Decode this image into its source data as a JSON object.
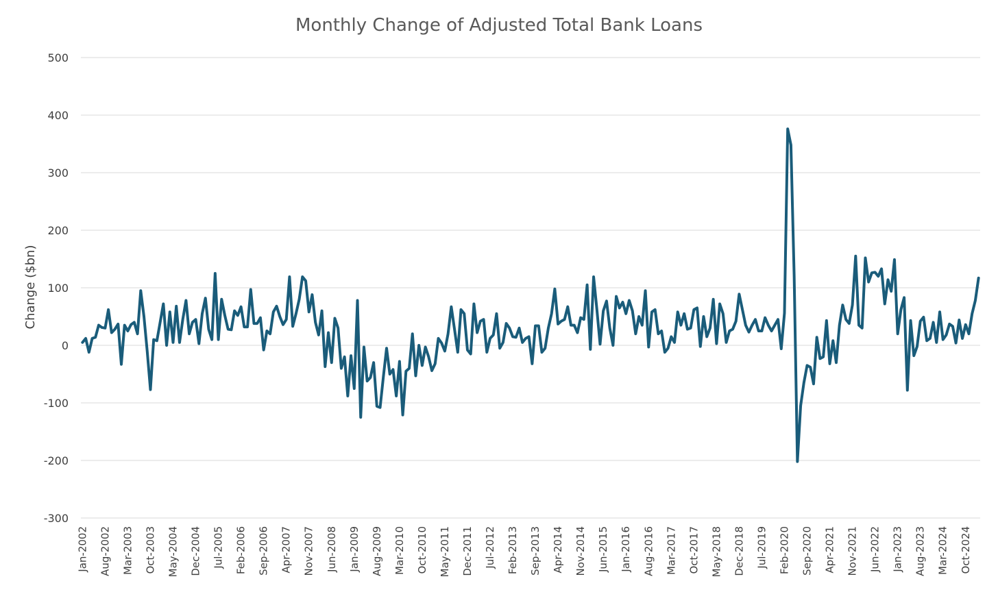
{
  "chart_data": {
    "type": "line",
    "title": "Monthly Change of Adjusted Total Bank Loans",
    "xlabel": "",
    "ylabel": "Change ($bn)",
    "ylim": [
      -300,
      500
    ],
    "yticks": [
      500,
      400,
      300,
      200,
      100,
      0,
      -100,
      -200,
      -300
    ],
    "ytick_labels": [
      "500",
      "400",
      "300",
      "200",
      "100",
      "0",
      "-100",
      "-200",
      "-300"
    ],
    "x_start": "Jan-2002",
    "x_end": "Jan-2025",
    "x_tick_labels": [
      "Jan-2002",
      "Aug-2002",
      "Mar-2003",
      "Oct-2003",
      "May-2004",
      "Dec-2004",
      "Jul-2005",
      "Feb-2006",
      "Sep-2006",
      "Apr-2007",
      "Nov-2007",
      "Jun-2008",
      "Jan-2009",
      "Aug-2009",
      "Mar-2010",
      "Oct-2010",
      "May-2011",
      "Dec-2011",
      "Jul-2012",
      "Feb-2013",
      "Sep-2013",
      "Apr-2014",
      "Nov-2014",
      "Jun-2015",
      "Jan-2016",
      "Aug-2016",
      "Mar-2017",
      "Oct-2017",
      "May-2018",
      "Dec-2018",
      "Jul-2019",
      "Feb-2020",
      "Sep-2020",
      "Apr-2021",
      "Nov-2021",
      "Jun-2022",
      "Jan-2023",
      "Aug-2023",
      "Mar-2024",
      "Oct-2024"
    ],
    "grid": true,
    "legend": "none",
    "color": "#1a5c7a",
    "series": [
      {
        "values": [
          5,
          12,
          -12,
          12,
          14,
          35,
          31,
          30,
          62,
          22,
          28,
          37,
          -33,
          35,
          25,
          36,
          40,
          20,
          95,
          50,
          -10,
          -77,
          10,
          8,
          40,
          72,
          0,
          58,
          5,
          68,
          5,
          45,
          78,
          20,
          40,
          45,
          3,
          55,
          82,
          28,
          10,
          125,
          10,
          80,
          52,
          28,
          27,
          60,
          52,
          67,
          32,
          32,
          97,
          38,
          38,
          48,
          -8,
          25,
          20,
          58,
          68,
          50,
          36,
          45,
          119,
          33,
          55,
          80,
          119,
          112,
          58,
          88,
          40,
          18,
          60,
          -37,
          22,
          -30,
          47,
          30,
          -40,
          -20,
          -88,
          -18,
          -75,
          78,
          -125,
          -3,
          -62,
          -56,
          -30,
          -106,
          -108,
          -55,
          -5,
          -50,
          -42,
          -88,
          -28,
          -121,
          -45,
          -40,
          20,
          -53,
          0,
          -35,
          -3,
          -20,
          -44,
          -32,
          12,
          4,
          -10,
          20,
          67,
          28,
          -12,
          62,
          55,
          -8,
          -15,
          72,
          22,
          42,
          45,
          -12,
          12,
          18,
          55,
          -5,
          5,
          38,
          30,
          15,
          14,
          30,
          5,
          12,
          15,
          -32,
          34,
          34,
          -12,
          -5,
          30,
          55,
          98,
          37,
          42,
          45,
          67,
          35,
          35,
          22,
          48,
          45,
          105,
          -7,
          119,
          63,
          2,
          60,
          77,
          30,
          0,
          85,
          65,
          75,
          55,
          78,
          60,
          20,
          50,
          35,
          95,
          -3,
          58,
          62,
          20,
          25,
          -12,
          -5,
          15,
          5,
          58,
          35,
          55,
          28,
          30,
          62,
          65,
          -2,
          50,
          15,
          30,
          80,
          3,
          72,
          55,
          5,
          25,
          28,
          42,
          89,
          62,
          35,
          23,
          35,
          45,
          25,
          25,
          48,
          35,
          25,
          35,
          45,
          -6,
          56,
          376,
          348,
          120,
          -202,
          -105,
          -65,
          -35,
          -38,
          -67,
          14,
          -23,
          -20,
          43,
          -32,
          8,
          -30,
          35,
          70,
          45,
          38,
          70,
          155,
          35,
          30,
          152,
          110,
          126,
          127,
          120,
          133,
          72,
          114,
          94,
          149,
          20,
          62,
          83,
          -78,
          43,
          -18,
          -2,
          42,
          49,
          8,
          12,
          40,
          5,
          58,
          10,
          18,
          37,
          33,
          4,
          44,
          12,
          36,
          20,
          55,
          78,
          117
        ]
      }
    ]
  }
}
